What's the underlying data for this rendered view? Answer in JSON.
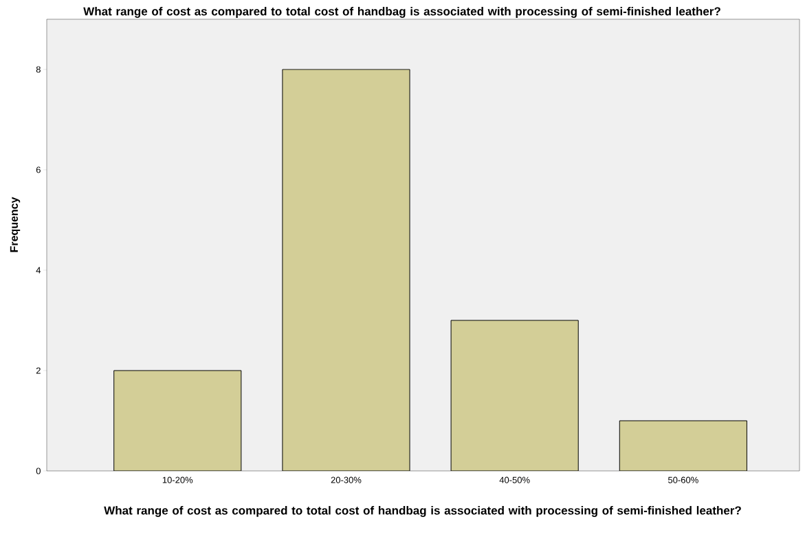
{
  "chart_data": {
    "type": "bar",
    "title": "What range of cost as compared to total cost of handbag is associated with processing of semi-finished leather?",
    "xlabel": "What range of cost as compared to total cost of handbag is associated with processing of semi-finished leather?",
    "ylabel": "Frequency",
    "categories": [
      "10-20%",
      "20-30%",
      "40-50%",
      "50-60%"
    ],
    "values": [
      2,
      8,
      3,
      1
    ],
    "color": "#d3ce97",
    "ylim": [
      0,
      9
    ],
    "yticks": [
      0,
      2,
      4,
      6,
      8
    ]
  }
}
